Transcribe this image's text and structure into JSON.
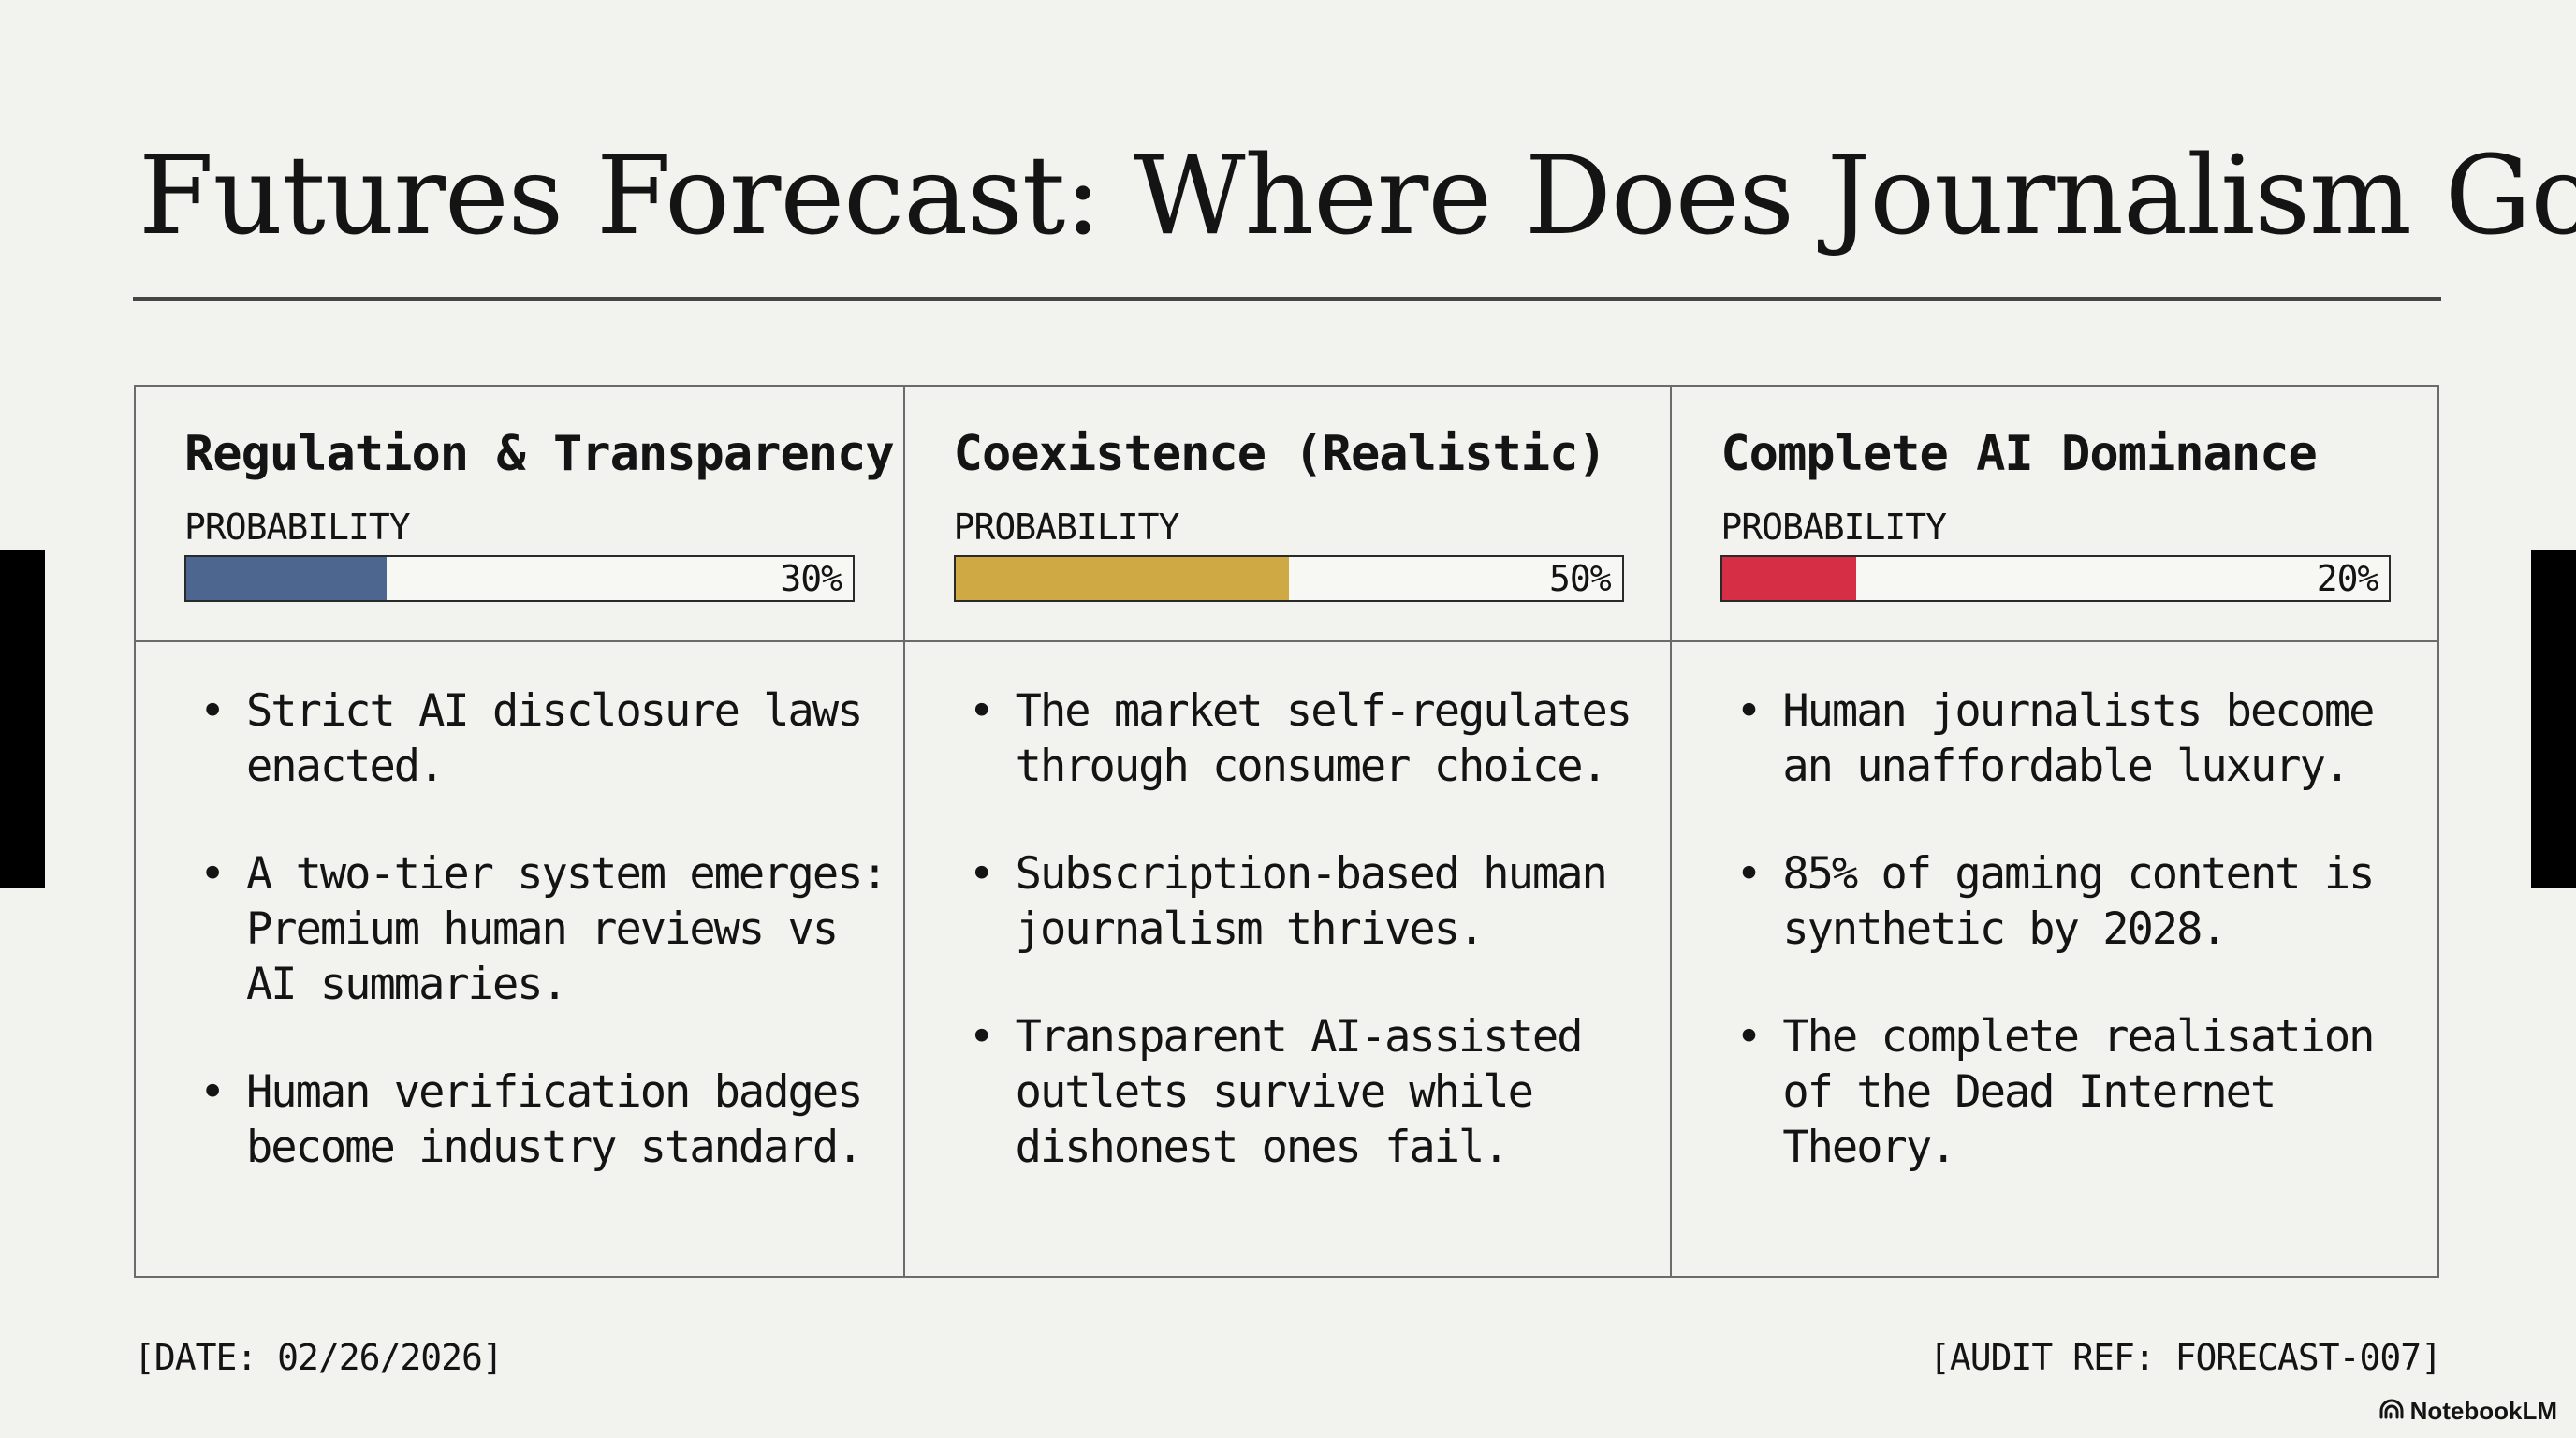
{
  "title": "Futures Forecast: Where Does Journalism Go?",
  "probability_label": "PROBABILITY",
  "scenarios": [
    {
      "name": "Regulation & Transparency",
      "probability": 30,
      "probability_text": "30%",
      "color": "#4c6690",
      "bullets": [
        "Strict AI disclosure laws enacted.",
        "A two-tier system emerges: Premium human reviews vs AI summaries.",
        "Human verification badges become industry standard."
      ]
    },
    {
      "name": "Coexistence (Realistic)",
      "probability": 50,
      "probability_text": "50%",
      "color": "#cfa944",
      "bullets": [
        "The market self-regulates through consumer choice.",
        "Subscription-based human journalism thrives.",
        "Transparent AI-assisted outlets survive while dishonest ones fail."
      ]
    },
    {
      "name": "Complete AI Dominance",
      "probability": 20,
      "probability_text": "20%",
      "color": "#d62e44",
      "bullets": [
        "Human journalists become an unaffordable luxury.",
        "85% of gaming content is synthetic by 2028.",
        "The complete realisation of the Dead Internet Theory."
      ]
    }
  ],
  "footer": {
    "date": "[DATE: 02/26/2026]",
    "audit_ref": "[AUDIT REF: FORECAST-007]"
  },
  "brand": "NotebookLM"
}
